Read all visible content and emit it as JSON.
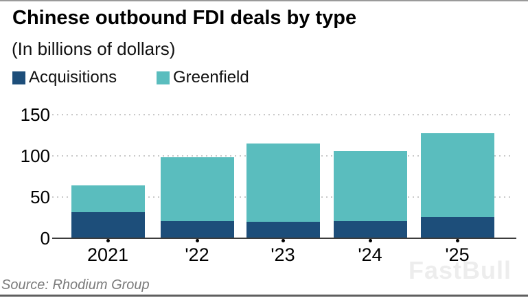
{
  "header": {
    "title": "Chinese outbound FDI deals by type",
    "subtitle": "(In billions of dollars)"
  },
  "legend": [
    {
      "label": "Acquisitions",
      "color": "#1d4e7a"
    },
    {
      "label": "Greenfield",
      "color": "#5abdbe"
    }
  ],
  "chart_data": {
    "type": "bar",
    "stacked": true,
    "title": "Chinese outbound FDI deals by type",
    "units": "billions of dollars",
    "categories": [
      "2021",
      "'22",
      "'23",
      "'24",
      "'25"
    ],
    "series": [
      {
        "name": "Acquisitions",
        "color": "#1d4e7a",
        "values": [
          32,
          21,
          20,
          21,
          26
        ]
      },
      {
        "name": "Greenfield",
        "color": "#5abdbe",
        "values": [
          32,
          77,
          95,
          85,
          101
        ]
      }
    ],
    "totals": [
      64,
      98,
      115,
      106,
      127
    ],
    "ylim": [
      0,
      150
    ],
    "yticks": [
      0,
      50,
      100,
      150
    ],
    "grid": "horizontal-dotted",
    "legend_position": "top-left"
  },
  "colors": {
    "grid": "#c9c9c9",
    "axis": "#3c3c3c",
    "source_text": "#7b7b7b",
    "watermark": "#ededed"
  },
  "footer": {
    "source": "Source: Rhodium Group",
    "watermark": "FastBull"
  }
}
